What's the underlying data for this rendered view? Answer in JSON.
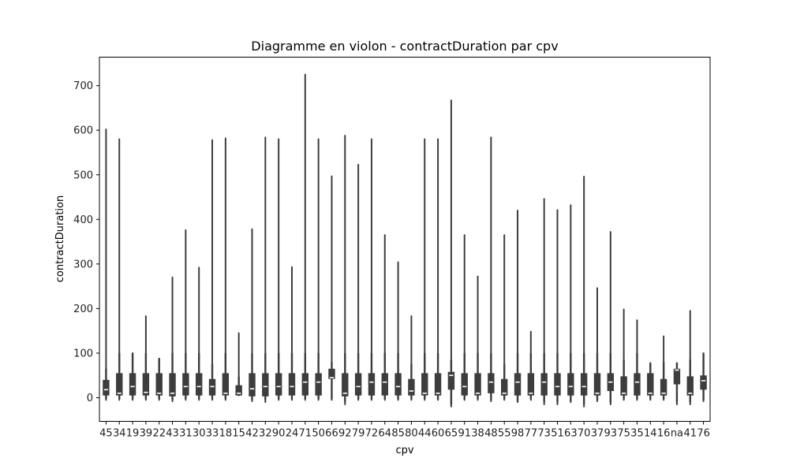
{
  "chart_data": {
    "type": "violin",
    "title": "Diagramme en violon - contractDuration par cpv",
    "xlabel": "cpv",
    "ylabel": "contractDuration",
    "ylim": [
      -55,
      760
    ],
    "yticks": [
      0,
      100,
      200,
      300,
      400,
      500,
      600,
      700
    ],
    "grid": false,
    "legend": "none",
    "colors": {
      "box": "#3d3d3d",
      "line": "#3d3d3d",
      "median": "#ffffff",
      "frame": "#000000"
    },
    "categories": [
      "45",
      "34",
      "19",
      "39",
      "22",
      "43",
      "31",
      "30",
      "33",
      "18",
      "15",
      "42",
      "32",
      "90",
      "24",
      "71",
      "50",
      "66",
      "92",
      "79",
      "72",
      "64",
      "85",
      "80",
      "44",
      "60",
      "65",
      "91",
      "38",
      "48",
      "55",
      "98",
      "77",
      "73",
      "51",
      "63",
      "70",
      "37",
      "93",
      "75",
      "35",
      "14",
      "16",
      "na",
      "41",
      "76"
    ],
    "series": [
      {
        "cat": "45",
        "min": -5,
        "q1": 5,
        "median": 18,
        "q3": 40,
        "whisker_low": -3,
        "whisker_high": 65,
        "max": 602
      },
      {
        "cat": "34",
        "min": -5,
        "q1": 5,
        "median": 10,
        "q3": 55,
        "whisker_low": -3,
        "whisker_high": 100,
        "max": 580
      },
      {
        "cat": "19",
        "min": -5,
        "q1": 5,
        "median": 25,
        "q3": 55,
        "whisker_low": -3,
        "whisker_high": 100,
        "max": 100
      },
      {
        "cat": "39",
        "min": -5,
        "q1": 5,
        "median": 12,
        "q3": 55,
        "whisker_low": -3,
        "whisker_high": 100,
        "max": 183
      },
      {
        "cat": "22",
        "min": -5,
        "q1": 5,
        "median": 10,
        "q3": 55,
        "whisker_low": -3,
        "whisker_high": 88,
        "max": 88
      },
      {
        "cat": "43",
        "min": -8,
        "q1": 3,
        "median": 10,
        "q3": 55,
        "whisker_low": -5,
        "whisker_high": 100,
        "max": 270
      },
      {
        "cat": "31",
        "min": -5,
        "q1": 5,
        "median": 25,
        "q3": 55,
        "whisker_low": -3,
        "whisker_high": 100,
        "max": 376
      },
      {
        "cat": "30",
        "min": -5,
        "q1": 5,
        "median": 25,
        "q3": 55,
        "whisker_low": -3,
        "whisker_high": 100,
        "max": 292
      },
      {
        "cat": "33",
        "min": -5,
        "q1": 5,
        "median": 25,
        "q3": 42,
        "whisker_low": -3,
        "whisker_high": 75,
        "max": 578
      },
      {
        "cat": "18",
        "min": -5,
        "q1": 5,
        "median": 10,
        "q3": 55,
        "whisker_low": -3,
        "whisker_high": 100,
        "max": 582
      },
      {
        "cat": "15",
        "min": 5,
        "q1": 5,
        "median": 10,
        "q3": 28,
        "whisker_low": 5,
        "whisker_high": 47,
        "max": 145
      },
      {
        "cat": "42",
        "min": -8,
        "q1": 3,
        "median": 20,
        "q3": 55,
        "whisker_low": -5,
        "whisker_high": 100,
        "max": 378
      },
      {
        "cat": "32",
        "min": -10,
        "q1": 3,
        "median": 25,
        "q3": 55,
        "whisker_low": -5,
        "whisker_high": 100,
        "max": 584
      },
      {
        "cat": "90",
        "min": -5,
        "q1": 5,
        "median": 25,
        "q3": 55,
        "whisker_low": -3,
        "whisker_high": 100,
        "max": 580
      },
      {
        "cat": "24",
        "min": -5,
        "q1": 5,
        "median": 25,
        "q3": 55,
        "whisker_low": -3,
        "whisker_high": 100,
        "max": 293
      },
      {
        "cat": "71",
        "min": -5,
        "q1": 5,
        "median": 35,
        "q3": 55,
        "whisker_low": -3,
        "whisker_high": 100,
        "max": 725
      },
      {
        "cat": "50",
        "min": -5,
        "q1": 5,
        "median": 35,
        "q3": 55,
        "whisker_low": -3,
        "whisker_high": 100,
        "max": 580
      },
      {
        "cat": "66",
        "min": -5,
        "q1": 42,
        "median": 45,
        "q3": 65,
        "whisker_low": -3,
        "whisker_high": 80,
        "max": 497
      },
      {
        "cat": "92",
        "min": -15,
        "q1": 3,
        "median": 10,
        "q3": 55,
        "whisker_low": -10,
        "whisker_high": 100,
        "max": 588
      },
      {
        "cat": "79",
        "min": -5,
        "q1": 5,
        "median": 25,
        "q3": 55,
        "whisker_low": -3,
        "whisker_high": 100,
        "max": 523
      },
      {
        "cat": "72",
        "min": -5,
        "q1": 5,
        "median": 35,
        "q3": 55,
        "whisker_low": -3,
        "whisker_high": 100,
        "max": 580
      },
      {
        "cat": "64",
        "min": -5,
        "q1": 5,
        "median": 35,
        "q3": 55,
        "whisker_low": -3,
        "whisker_high": 100,
        "max": 365
      },
      {
        "cat": "85",
        "min": -5,
        "q1": 5,
        "median": 25,
        "q3": 55,
        "whisker_low": -3,
        "whisker_high": 100,
        "max": 304
      },
      {
        "cat": "80",
        "min": -5,
        "q1": 5,
        "median": 15,
        "q3": 42,
        "whisker_low": -3,
        "whisker_high": 75,
        "max": 183
      },
      {
        "cat": "44",
        "min": -5,
        "q1": 5,
        "median": 10,
        "q3": 55,
        "whisker_low": -3,
        "whisker_high": 100,
        "max": 580
      },
      {
        "cat": "60",
        "min": -5,
        "q1": 5,
        "median": 10,
        "q3": 55,
        "whisker_low": -3,
        "whisker_high": 100,
        "max": 580
      },
      {
        "cat": "65",
        "min": -20,
        "q1": 18,
        "median": 50,
        "q3": 58,
        "whisker_low": -15,
        "whisker_high": 85,
        "max": 667
      },
      {
        "cat": "91",
        "min": -5,
        "q1": 5,
        "median": 25,
        "q3": 55,
        "whisker_low": -3,
        "whisker_high": 100,
        "max": 365
      },
      {
        "cat": "38",
        "min": -5,
        "q1": 5,
        "median": 10,
        "q3": 55,
        "whisker_low": -3,
        "whisker_high": 100,
        "max": 272
      },
      {
        "cat": "48",
        "min": -8,
        "q1": 10,
        "median": 35,
        "q3": 55,
        "whisker_low": -5,
        "whisker_high": 100,
        "max": 584
      },
      {
        "cat": "55",
        "min": -5,
        "q1": 5,
        "median": 10,
        "q3": 42,
        "whisker_low": -3,
        "whisker_high": 75,
        "max": 365
      },
      {
        "cat": "98",
        "min": -10,
        "q1": 5,
        "median": 35,
        "q3": 55,
        "whisker_low": -8,
        "whisker_high": 100,
        "max": 420
      },
      {
        "cat": "77",
        "min": -5,
        "q1": 5,
        "median": 10,
        "q3": 55,
        "whisker_low": -3,
        "whisker_high": 100,
        "max": 148
      },
      {
        "cat": "73",
        "min": -15,
        "q1": 5,
        "median": 35,
        "q3": 55,
        "whisker_low": -10,
        "whisker_high": 100,
        "max": 446
      },
      {
        "cat": "51",
        "min": -15,
        "q1": 5,
        "median": 25,
        "q3": 55,
        "whisker_low": -10,
        "whisker_high": 100,
        "max": 421
      },
      {
        "cat": "63",
        "min": -10,
        "q1": 5,
        "median": 25,
        "q3": 55,
        "whisker_low": -8,
        "whisker_high": 100,
        "max": 432
      },
      {
        "cat": "70",
        "min": -20,
        "q1": 5,
        "median": 25,
        "q3": 55,
        "whisker_low": -15,
        "whisker_high": 100,
        "max": 496
      },
      {
        "cat": "37",
        "min": -8,
        "q1": 5,
        "median": 10,
        "q3": 55,
        "whisker_low": -5,
        "whisker_high": 100,
        "max": 246
      },
      {
        "cat": "93",
        "min": -15,
        "q1": 15,
        "median": 35,
        "q3": 55,
        "whisker_low": -10,
        "whisker_high": 100,
        "max": 372
      },
      {
        "cat": "75",
        "min": -5,
        "q1": 5,
        "median": 10,
        "q3": 48,
        "whisker_low": -3,
        "whisker_high": 85,
        "max": 198
      },
      {
        "cat": "35",
        "min": -5,
        "q1": 5,
        "median": 35,
        "q3": 55,
        "whisker_low": -3,
        "whisker_high": 100,
        "max": 174
      },
      {
        "cat": "14",
        "min": -5,
        "q1": 5,
        "median": 10,
        "q3": 55,
        "whisker_low": -3,
        "whisker_high": 78,
        "max": 78
      },
      {
        "cat": "16",
        "min": -5,
        "q1": 5,
        "median": 10,
        "q3": 42,
        "whisker_low": -3,
        "whisker_high": 80,
        "max": 138
      },
      {
        "cat": "na",
        "min": -15,
        "q1": 30,
        "median": 62,
        "q3": 65,
        "whisker_low": -10,
        "whisker_high": 78,
        "max": 78
      },
      {
        "cat": "41",
        "min": -15,
        "q1": 5,
        "median": 10,
        "q3": 48,
        "whisker_low": -10,
        "whisker_high": 85,
        "max": 195
      },
      {
        "cat": "76",
        "min": -8,
        "q1": 18,
        "median": 38,
        "q3": 50,
        "whisker_low": -5,
        "whisker_high": 100,
        "max": 100
      }
    ]
  }
}
